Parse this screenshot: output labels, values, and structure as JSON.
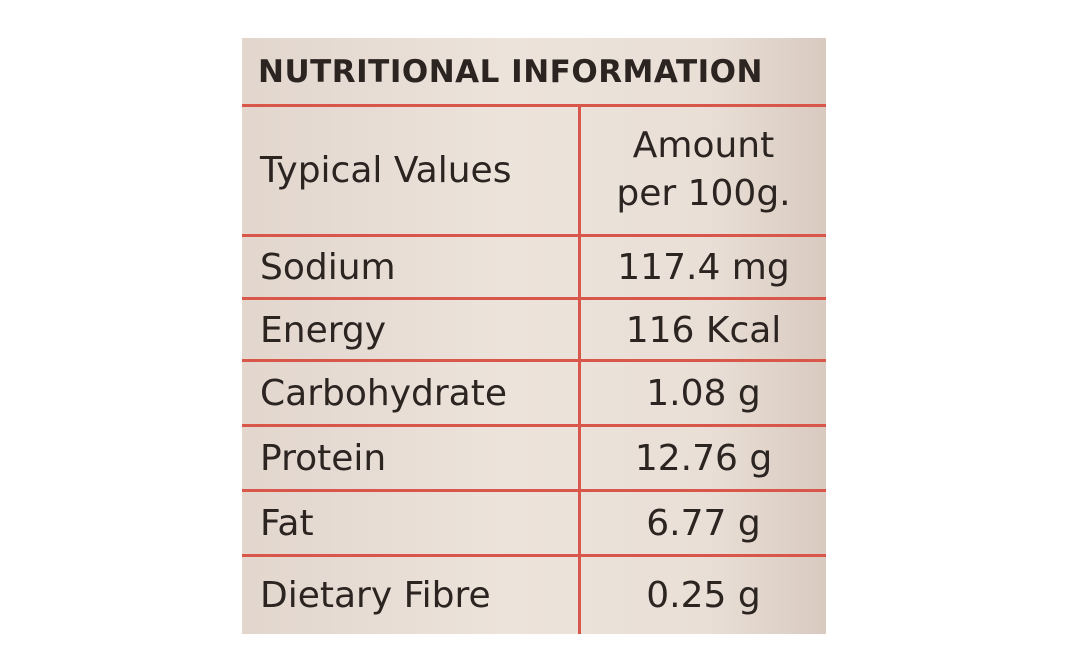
{
  "header": {
    "title": "NUTRITIONAL INFORMATION"
  },
  "table": {
    "head": {
      "label": "Typical Values",
      "amount_lines": [
        "Amount",
        "per 100g."
      ]
    },
    "rows": [
      [
        "Sodium",
        "117.4 mg"
      ],
      [
        "Energy",
        "116 Kcal"
      ],
      [
        "Carbohydrate",
        "1.08 g"
      ],
      [
        "Protein",
        "12.76 g"
      ],
      [
        "Fat",
        "6.77 g"
      ],
      [
        "Dietary Fibre",
        "0.25 g"
      ]
    ]
  }
}
